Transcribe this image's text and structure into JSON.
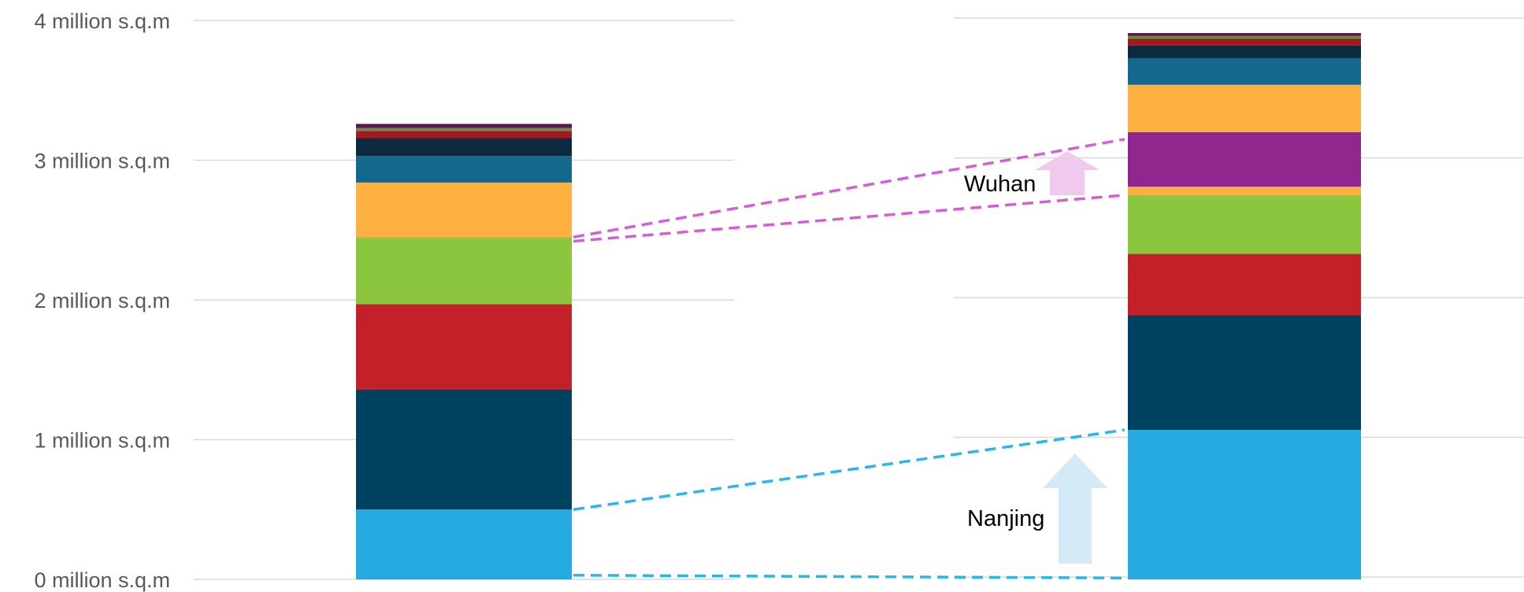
{
  "chart_data": {
    "type": "bar",
    "stacked": true,
    "title": "",
    "xlabel": "",
    "ylabel": "",
    "ylim": [
      0,
      4
    ],
    "grid": true,
    "legend": "none",
    "y_ticks": [
      {
        "value": 0,
        "label": "0 million s.q.m"
      },
      {
        "value": 1,
        "label": "1 million s.q.m"
      },
      {
        "value": 2,
        "label": "2 million s.q.m"
      },
      {
        "value": 3,
        "label": "3 million s.q.m"
      },
      {
        "value": 4,
        "label": "4 million s.q.m"
      }
    ],
    "categories": [
      "",
      ""
    ],
    "series": [
      {
        "color": "#25aae1",
        "values": [
          0.5,
          1.07
        ]
      },
      {
        "color": "#004261",
        "values": [
          0.86,
          0.82
        ]
      },
      {
        "color": "#c3202a",
        "values": [
          0.61,
          0.44
        ]
      },
      {
        "color": "#8cc63f",
        "values": [
          0.48,
          0.42
        ]
      },
      {
        "color": "#fbb040",
        "values": [
          0.39,
          0.06
        ]
      },
      {
        "color": "#8f278f",
        "values": [
          0.0,
          0.39
        ]
      },
      {
        "color": "#fbb040",
        "values": [
          0.0,
          0.34
        ]
      },
      {
        "color": "#13688c",
        "values": [
          0.19,
          0.19
        ]
      },
      {
        "color": "#0c2a3d",
        "values": [
          0.13,
          0.09
        ]
      },
      {
        "color": "#a11c22",
        "values": [
          0.05,
          0.05
        ]
      },
      {
        "color": "#6b8e3d",
        "values": [
          0.02,
          0.02
        ]
      },
      {
        "color": "#5a1a4e",
        "values": [
          0.03,
          0.02
        ]
      }
    ],
    "annotations": [
      {
        "label": "Wuhan",
        "color": "#d45ed4",
        "arrow_color": "#f2c9ee",
        "lines": [
          {
            "from": [
              0,
              2.45
            ],
            "to": [
              1,
              3.15
            ]
          },
          {
            "from": [
              0,
              2.42
            ],
            "to": [
              1,
              2.75
            ]
          }
        ]
      },
      {
        "label": "Nanjing",
        "color": "#29b6e8",
        "arrow_color": "#d4eaf6",
        "lines": [
          {
            "from": [
              0,
              0.5
            ],
            "to": [
              1,
              1.07
            ]
          },
          {
            "from": [
              0,
              0.03
            ],
            "to": [
              1,
              0.01
            ]
          }
        ]
      }
    ]
  }
}
